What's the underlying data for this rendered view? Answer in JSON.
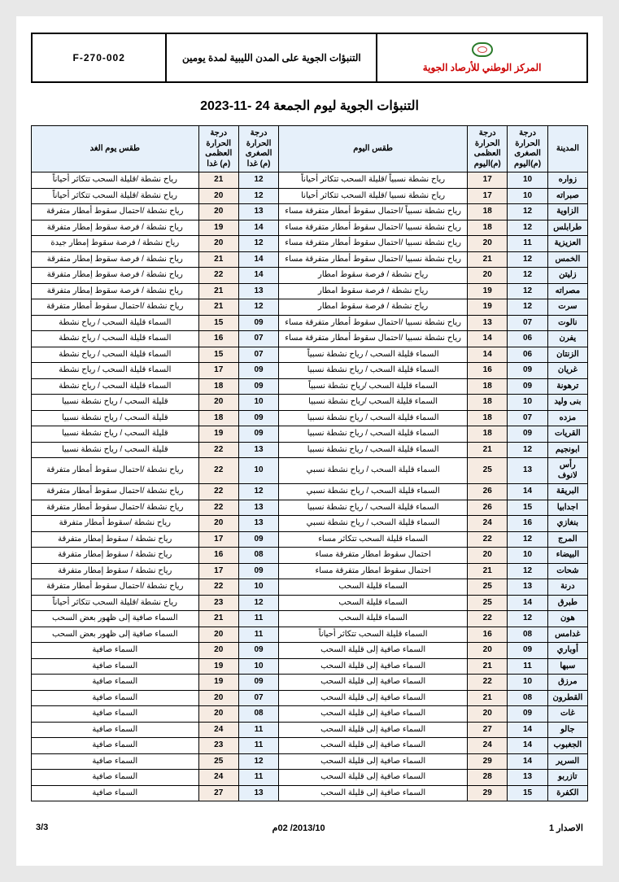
{
  "header": {
    "code": "F-270-002",
    "doc_title": "التنبؤات الجوية على المدن الليبية لمدة يومين",
    "org": "المركز الوطني للأرصاد الجوية"
  },
  "main_title": "التنبؤات الجوية ليوم الجمعة  24 -11-2023",
  "columns": {
    "city": "المدينة",
    "min_today": "درجة الحرارة الصغرى (م)اليوم",
    "max_today": "درجة الحرارة العظمى (م)اليوم",
    "wx_today": "طقس اليوم",
    "min_tmrw": "درجة الحرارة الصغرى (م) غدا",
    "max_tmrw": "درجة الحرارة العظمى (م) غدا",
    "wx_tmrw": "طقس يوم الغد"
  },
  "rows": [
    {
      "city": "زواره",
      "min_t": "10",
      "max_t": "17",
      "wx_t": "رياح نشطة نسبياً /قليلة السحب تتكاثر أحياناً",
      "min_m": "12",
      "max_m": "21",
      "wx_m": "رياح نشطة /قليلة السحب تتكاثر أحياناً"
    },
    {
      "city": "صبراته",
      "min_t": "10",
      "max_t": "17",
      "wx_t": "رياح نشطة نسبيا /قليلة السحب تتكاثر أحيانا",
      "min_m": "12",
      "max_m": "20",
      "wx_m": "رياح نشطة /قليلة السحب تتكاثر أحياناً"
    },
    {
      "city": "الزاوية",
      "min_t": "12",
      "max_t": "18",
      "wx_t": "رياح نشطة نسبياً /احتمال سقوط أمطار متفرقة مساء",
      "min_m": "13",
      "max_m": "20",
      "wx_m": "رياح نشطة /احتمال سقوط أمطار متفرقة"
    },
    {
      "city": "طرابلس",
      "min_t": "12",
      "max_t": "18",
      "wx_t": "رياح نشطة نسبيا /احتمال سقوط أمطار متفرقة مساء",
      "min_m": "14",
      "max_m": "19",
      "wx_m": "رياح نشطة / فرصة سقوط إمطار متفرقة"
    },
    {
      "city": "العزيزية",
      "min_t": "11",
      "max_t": "20",
      "wx_t": "رياح نشطة نسبيا /احتمال سقوط أمطار متفرقة مساء",
      "min_m": "12",
      "max_m": "20",
      "wx_m": "رياح نشطة / فرصة سقوط إمطار جيدة"
    },
    {
      "city": "الخمس",
      "min_t": "12",
      "max_t": "21",
      "wx_t": "رياح نشطة نسبيا /احتمال سقوط أمطار متفرقة مساء",
      "min_m": "14",
      "max_m": "21",
      "wx_m": "رياح نشطة / فرصة سقوط إمطار متفرقة"
    },
    {
      "city": "زليتن",
      "min_t": "12",
      "max_t": "20",
      "wx_t": "رياح نشطة / فرصة سقوط امطار",
      "min_m": "14",
      "max_m": "22",
      "wx_m": "رياح نشطة / فرصة سقوط إمطار متفرقة"
    },
    {
      "city": "مصراته",
      "min_t": "12",
      "max_t": "19",
      "wx_t": "رياح نشطة / فرصة سقوط امطار",
      "min_m": "13",
      "max_m": "21",
      "wx_m": "رياح نشطة / فرصة سقوط إمطار متفرقة"
    },
    {
      "city": "سرت",
      "min_t": "12",
      "max_t": "19",
      "wx_t": "رياح نشطة / فرصة سقوط امطار",
      "min_m": "12",
      "max_m": "21",
      "wx_m": "رياح نشطة /احتمال سقوط أمطار متفرقة"
    },
    {
      "city": "نالوت",
      "min_t": "07",
      "max_t": "13",
      "wx_t": "رياح نشطة نسبيا /احتمال سقوط أمطار متفرقة مساء",
      "min_m": "09",
      "max_m": "15",
      "wx_m": "السماء قليلة السحب / رياح نشطة"
    },
    {
      "city": "يفرن",
      "min_t": "06",
      "max_t": "14",
      "wx_t": "رياح نشطة نسبيا /احتمال سقوط أمطار متفرقة مساء",
      "min_m": "07",
      "max_m": "16",
      "wx_m": "السماء قليلة السحب / رياح نشطة"
    },
    {
      "city": "الزنتان",
      "min_t": "06",
      "max_t": "14",
      "wx_t": "السماء قليلة السحب / رياح نشطة نسبياً",
      "min_m": "07",
      "max_m": "15",
      "wx_m": "السماء قليلة السحب / رياح نشطة"
    },
    {
      "city": "غريان",
      "min_t": "09",
      "max_t": "16",
      "wx_t": "السماء قليلة السحب / رياح نشطة نسبيا",
      "min_m": "09",
      "max_m": "17",
      "wx_m": "السماء قليلة السحب / رياح نشطة"
    },
    {
      "city": "ترهونة",
      "min_t": "09",
      "max_t": "18",
      "wx_t": "السماء قليلة السحب /رياح نشطة نسبياً",
      "min_m": "09",
      "max_m": "18",
      "wx_m": "السماء قليلة السحب / رياح نشطة"
    },
    {
      "city": "بنى وليد",
      "min_t": "10",
      "max_t": "18",
      "wx_t": "السماء قليلة السحب /رياح نشطة نسبيا",
      "min_m": "10",
      "max_m": "20",
      "wx_m": "قليلة السحب / رياح نشطة نسبيا"
    },
    {
      "city": "مزده",
      "min_t": "07",
      "max_t": "18",
      "wx_t": "السماء قليلة السحب / رياح نشطة نسبيا",
      "min_m": "09",
      "max_m": "18",
      "wx_m": "قليلة السحب / رياح نشطة نسبيا"
    },
    {
      "city": "القريات",
      "min_t": "09",
      "max_t": "18",
      "wx_t": "السماء قليلة السحب / رياح نشطة نسبيا",
      "min_m": "09",
      "max_m": "19",
      "wx_m": "قليلة السحب / رياح نشطة نسبيا"
    },
    {
      "city": "ابونجيم",
      "min_t": "12",
      "max_t": "21",
      "wx_t": "السماء قليلة السحب / رياح نشطة نسبيا",
      "min_m": "13",
      "max_m": "22",
      "wx_m": "قليلة السحب / رياح نشطة نسبيا"
    },
    {
      "city": "رأس لانوف",
      "min_t": "13",
      "max_t": "25",
      "wx_t": "السماء قليلة السحب / رياح نشطة نسبي",
      "min_m": "10",
      "max_m": "22",
      "wx_m": "رياح نشطة /احتمال سقوط أمطار متفرقة"
    },
    {
      "city": "البريقة",
      "min_t": "14",
      "max_t": "26",
      "wx_t": "السماء قليلة السحب / رياح نشطة نسبي",
      "min_m": "12",
      "max_m": "22",
      "wx_m": "رياح نشطة /احتمال سقوط أمطار متفرقة"
    },
    {
      "city": "اجدابيا",
      "min_t": "15",
      "max_t": "26",
      "wx_t": "السماء قليلة السحب / رياح نشطة نسبيا",
      "min_m": "13",
      "max_m": "22",
      "wx_m": "رياح نشطة /احتمال سقوط أمطار متفرقة"
    },
    {
      "city": "بنغازي",
      "min_t": "16",
      "max_t": "24",
      "wx_t": "السماء قليلة السحب / رياح نشطة نسبي",
      "min_m": "13",
      "max_m": "20",
      "wx_m": "رياح نشطة /سقوط أمطار متفرقة"
    },
    {
      "city": "المرج",
      "min_t": "12",
      "max_t": "22",
      "wx_t": "السماء قليلة السحب تتكاثر مساء",
      "min_m": "09",
      "max_m": "17",
      "wx_m": "رياح نشطة / سقوط إمطار متفرقة"
    },
    {
      "city": "البيضاء",
      "min_t": "10",
      "max_t": "20",
      "wx_t": "احتمال سقوط امطار متفرقة مساء",
      "min_m": "08",
      "max_m": "16",
      "wx_m": "رياح نشطة / سقوط إمطار متفرقة"
    },
    {
      "city": "شحات",
      "min_t": "12",
      "max_t": "21",
      "wx_t": "احتمال سقوط امطار متفرقة مساء",
      "min_m": "09",
      "max_m": "17",
      "wx_m": "رياح نشطة / سقوط إمطار متفرقة"
    },
    {
      "city": "درنة",
      "min_t": "13",
      "max_t": "25",
      "wx_t": "السماء قليلة السحب",
      "min_m": "10",
      "max_m": "22",
      "wx_m": "رياح نشطة /احتمال سقوط أمطار متفرقة"
    },
    {
      "city": "طبرق",
      "min_t": "14",
      "max_t": "25",
      "wx_t": "السماء قليلة السحب",
      "min_m": "12",
      "max_m": "23",
      "wx_m": "رياح نشطة /قليلة السحب تتكاثر أحياناً"
    },
    {
      "city": "هون",
      "min_t": "12",
      "max_t": "22",
      "wx_t": "السماء قليلة السحب",
      "min_m": "11",
      "max_m": "21",
      "wx_m": "السماء صافية إلى ظهور بعض السحب"
    },
    {
      "city": "غدامس",
      "min_t": "08",
      "max_t": "16",
      "wx_t": "السماء قليلة السحب تتكاثر أحياناً",
      "min_m": "11",
      "max_m": "20",
      "wx_m": "السماء صافية إلى ظهور بعض السحب"
    },
    {
      "city": "أوباري",
      "min_t": "09",
      "max_t": "20",
      "wx_t": "السماء صافية إلى قليلة السحب",
      "min_m": "09",
      "max_m": "20",
      "wx_m": "السماء صافية"
    },
    {
      "city": "سبها",
      "min_t": "11",
      "max_t": "21",
      "wx_t": "السماء صافية إلى قليلة السحب",
      "min_m": "10",
      "max_m": "19",
      "wx_m": "السماء صافية"
    },
    {
      "city": "مرزق",
      "min_t": "10",
      "max_t": "22",
      "wx_t": "السماء صافية إلى قليلة السحب",
      "min_m": "09",
      "max_m": "19",
      "wx_m": "السماء صافية"
    },
    {
      "city": "القطرون",
      "min_t": "08",
      "max_t": "21",
      "wx_t": "السماء صافية إلى قليلة السحب",
      "min_m": "07",
      "max_m": "20",
      "wx_m": "السماء صافية"
    },
    {
      "city": "غات",
      "min_t": "09",
      "max_t": "20",
      "wx_t": "السماء صافية إلى قليلة السحب",
      "min_m": "08",
      "max_m": "20",
      "wx_m": "السماء صافية"
    },
    {
      "city": "جالو",
      "min_t": "14",
      "max_t": "27",
      "wx_t": "السماء صافية إلى قليلة السحب",
      "min_m": "11",
      "max_m": "24",
      "wx_m": "السماء صافية"
    },
    {
      "city": "الجغبوب",
      "min_t": "14",
      "max_t": "24",
      "wx_t": "السماء صافية إلى قليلة السحب",
      "min_m": "11",
      "max_m": "23",
      "wx_m": "السماء صافية"
    },
    {
      "city": "السرير",
      "min_t": "14",
      "max_t": "29",
      "wx_t": "السماء صافية إلى قليلة السحب",
      "min_m": "12",
      "max_m": "25",
      "wx_m": "السماء صافية"
    },
    {
      "city": "تازربو",
      "min_t": "13",
      "max_t": "28",
      "wx_t": "السماء صافية إلى قليلة السحب",
      "min_m": "11",
      "max_m": "24",
      "wx_m": "السماء صافية"
    },
    {
      "city": "الكفرة",
      "min_t": "15",
      "max_t": "29",
      "wx_t": "السماء صافية إلى قليلة السحب",
      "min_m": "13",
      "max_m": "27",
      "wx_m": "السماء صافية"
    }
  ],
  "footer": {
    "issue": "الاصدار 1",
    "date": "2013/10/ 02م",
    "page": "3/3"
  },
  "style": {
    "header_bg": "#e6f0fa",
    "max_bg": "#f6ebe2",
    "border": "#000000",
    "org_color": "#cc0000",
    "page_bg": "#ffffff",
    "font_size_table": 10,
    "font_size_title": 16
  }
}
